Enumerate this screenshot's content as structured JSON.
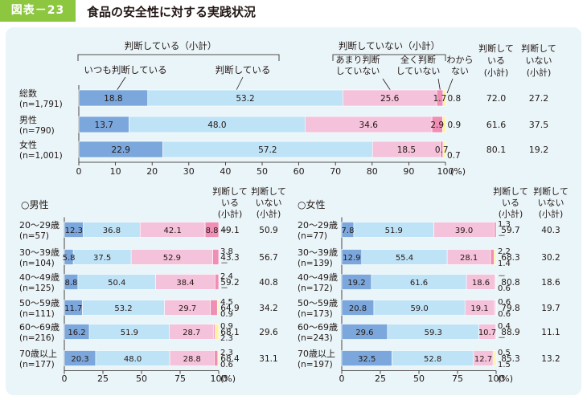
{
  "header": {
    "tag": "図表－23",
    "title": "食品の安全性に対する実践状況"
  },
  "colors": {
    "always": "#7ba7dc",
    "does": "#bfe3f6",
    "rarely": "#f4c2da",
    "never": "#f08fb5",
    "dk": "#fff3a0"
  },
  "chart_data": [
    {
      "type": "bar",
      "stacked": true,
      "orientation": "horizontal",
      "xlim": [
        0,
        100
      ],
      "xticks": [
        "0",
        "10",
        "20",
        "30",
        "40",
        "50",
        "60",
        "70",
        "80",
        "90",
        "100"
      ],
      "xunit": "(%)",
      "group_labels": {
        "judging_subtotal": "判断している（小計）",
        "not_judging_subtotal": "判断していない（小計）"
      },
      "legend": {
        "always": "いつも判断している",
        "does": "判断している",
        "rarely_l1": "あまり判断",
        "rarely_l2": "していない",
        "never_l1": "全く判断",
        "never_l2": "していない",
        "dk_l1": "わから",
        "dk_l2": "ない"
      },
      "col_headers": {
        "judge_l1": "判断して",
        "judge_l2": "いる",
        "judge_l3": "(小計)",
        "notjudge_l1": "判断して",
        "notjudge_l2": "いない",
        "notjudge_l3": "(小計)"
      },
      "rows": [
        {
          "name": "総数",
          "n": "(n=1,791)",
          "values": [
            18.8,
            53.2,
            25.6,
            1.7,
            0.8
          ],
          "labels": [
            "18.8",
            "53.2",
            "25.6",
            "1.7",
            "0.8"
          ],
          "subtotal_judge": "72.0",
          "subtotal_not": "27.2"
        },
        {
          "name": "男性",
          "n": "(n=790)",
          "values": [
            13.7,
            48.0,
            34.6,
            2.9,
            0.9
          ],
          "labels": [
            "13.7",
            "48.0",
            "34.6",
            "2.9",
            "0.9"
          ],
          "subtotal_judge": "61.6",
          "subtotal_not": "37.5"
        },
        {
          "name": "女性",
          "n": "(n=1,001)",
          "values": [
            22.9,
            57.2,
            18.5,
            0.7,
            0.7
          ],
          "labels": [
            "22.9",
            "57.2",
            "18.5",
            "0.7",
            "0.7"
          ],
          "subtotal_judge": "80.1",
          "subtotal_not": "19.2"
        }
      ]
    },
    {
      "type": "bar",
      "stacked": true,
      "orientation": "horizontal",
      "title": "○男性",
      "xlim": [
        0,
        100
      ],
      "xticks": [
        "0",
        "25",
        "50",
        "75",
        "100"
      ],
      "xunit": "(%)",
      "col_headers": {
        "judge_l1": "判断して",
        "judge_l2": "いる",
        "judge_l3": "(小計)",
        "notjudge_l1": "判断して",
        "notjudge_l2": "いない",
        "notjudge_l3": "(小計)"
      },
      "rows": [
        {
          "name": "20～29歳",
          "n": "(n=57)",
          "values": [
            12.3,
            36.8,
            42.1,
            8.8,
            0
          ],
          "labels": [
            "12.3",
            "36.8",
            "42.1",
            "8.8",
            "－"
          ],
          "subtotal_judge": "49.1",
          "subtotal_not": "50.9"
        },
        {
          "name": "30～39歳",
          "n": "(n=104)",
          "values": [
            5.8,
            37.5,
            52.9,
            3.8,
            0
          ],
          "labels": [
            "5.8",
            "37.5",
            "52.9",
            "3.8",
            "－"
          ],
          "subtotal_judge": "43.3",
          "subtotal_not": "56.7"
        },
        {
          "name": "40～49歳",
          "n": "(n=125)",
          "values": [
            8.8,
            50.4,
            38.4,
            2.4,
            0
          ],
          "labels": [
            "8.8",
            "50.4",
            "38.4",
            "2.4",
            "－"
          ],
          "subtotal_judge": "59.2",
          "subtotal_not": "40.8"
        },
        {
          "name": "50～59歳",
          "n": "(n=111)",
          "values": [
            11.7,
            53.2,
            29.7,
            4.5,
            0.9
          ],
          "labels": [
            "11.7",
            "53.2",
            "29.7",
            "4.5",
            "0.9"
          ],
          "subtotal_judge": "64.9",
          "subtotal_not": "34.2"
        },
        {
          "name": "60～69歳",
          "n": "(n=216)",
          "values": [
            16.2,
            51.9,
            28.7,
            0.9,
            2.3
          ],
          "labels": [
            "16.2",
            "51.9",
            "28.7",
            "0.9",
            "2.3"
          ],
          "subtotal_judge": "68.1",
          "subtotal_not": "29.6"
        },
        {
          "name": "70歳以上",
          "n": "(n=177)",
          "values": [
            20.3,
            48.0,
            28.8,
            2.3,
            0.6
          ],
          "labels": [
            "20.3",
            "48.0",
            "28.8",
            "2.3",
            "0.6"
          ],
          "subtotal_judge": "68.4",
          "subtotal_not": "31.1"
        }
      ]
    },
    {
      "type": "bar",
      "stacked": true,
      "orientation": "horizontal",
      "title": "○女性",
      "xlim": [
        0,
        100
      ],
      "xticks": [
        "0",
        "25",
        "50",
        "75",
        "100"
      ],
      "xunit": "(%)",
      "col_headers": {
        "judge_l1": "判断して",
        "judge_l2": "いる",
        "judge_l3": "(小計)",
        "notjudge_l1": "判断して",
        "notjudge_l2": "いない",
        "notjudge_l3": "(小計)"
      },
      "rows": [
        {
          "name": "20～29歳",
          "n": "(n=77)",
          "values": [
            7.8,
            51.9,
            39.0,
            1.3,
            0
          ],
          "labels": [
            "7.8",
            "51.9",
            "39.0",
            "1.3",
            "－"
          ],
          "subtotal_judge": "59.7",
          "subtotal_not": "40.3"
        },
        {
          "name": "30～39歳",
          "n": "(n=139)",
          "values": [
            12.9,
            55.4,
            28.1,
            2.2,
            1.4
          ],
          "labels": [
            "12.9",
            "55.4",
            "28.1",
            "2.2",
            "1.4"
          ],
          "subtotal_judge": "68.3",
          "subtotal_not": "30.2"
        },
        {
          "name": "40～49歳",
          "n": "(n=172)",
          "values": [
            19.2,
            61.6,
            18.6,
            0,
            0.6
          ],
          "labels": [
            "19.2",
            "61.6",
            "18.6",
            "－",
            "0.6"
          ],
          "subtotal_judge": "80.8",
          "subtotal_not": "18.6"
        },
        {
          "name": "50～59歳",
          "n": "(n=173)",
          "values": [
            20.8,
            59.0,
            19.1,
            0.6,
            0.6
          ],
          "labels": [
            "20.8",
            "59.0",
            "19.1",
            "0.6",
            "0.6"
          ],
          "subtotal_judge": "79.8",
          "subtotal_not": "19.7"
        },
        {
          "name": "60～69歳",
          "n": "(n=243)",
          "values": [
            29.6,
            59.3,
            10.7,
            0.4,
            0
          ],
          "labels": [
            "29.6",
            "59.3",
            "10.7",
            "0.4",
            "－"
          ],
          "subtotal_judge": "88.9",
          "subtotal_not": "11.1"
        },
        {
          "name": "70歳以上",
          "n": "(n=197)",
          "values": [
            32.5,
            52.8,
            12.7,
            0.5,
            1.5
          ],
          "labels": [
            "32.5",
            "52.8",
            "12.7",
            "0.5",
            "1.5"
          ],
          "subtotal_judge": "85.3",
          "subtotal_not": "13.2"
        }
      ]
    }
  ]
}
